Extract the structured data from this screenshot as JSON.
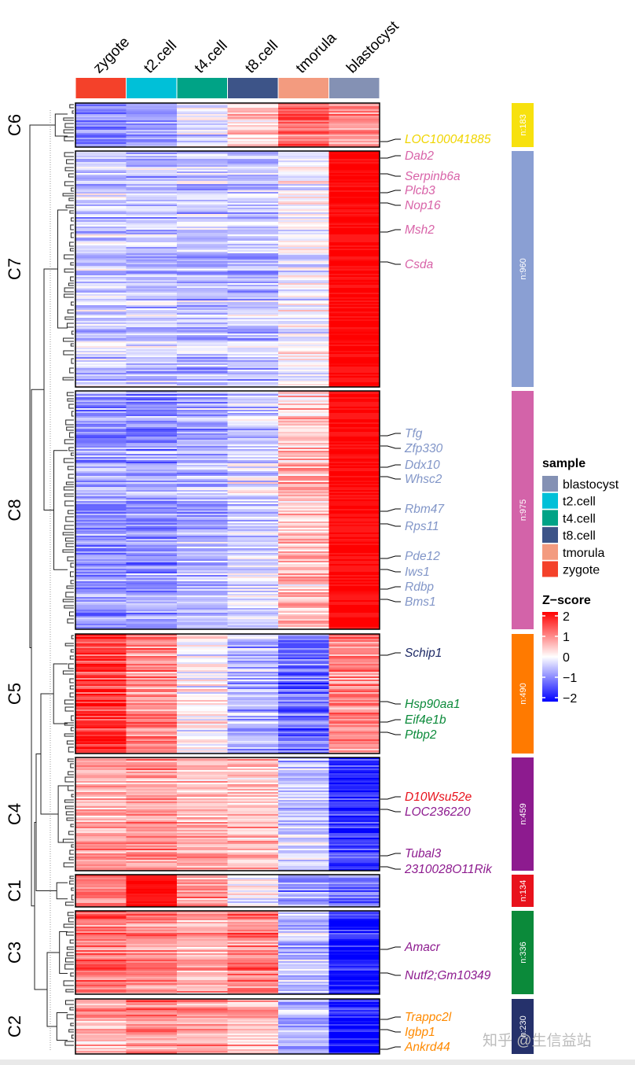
{
  "chart_data": {
    "type": "heatmap",
    "title": "",
    "columns": [
      "zygote",
      "t2.cell",
      "t4.cell",
      "t8.cell",
      "tmorula",
      "blastocyst"
    ],
    "column_colors": [
      "#f4412a",
      "#00c0d8",
      "#00a386",
      "#3d5488",
      "#f39b7f",
      "#8491b4"
    ],
    "clusters": [
      {
        "name": "C6",
        "count": "n:183",
        "color": "#f7e10e",
        "means": [
          -1.0,
          -0.8,
          -0.3,
          0.3,
          1.2,
          0.8
        ],
        "genes": [
          {
            "label": "LOC100041885",
            "color": "#f0d500"
          }
        ]
      },
      {
        "name": "C7",
        "count": "n:960",
        "color": "#8a9fd3",
        "means": [
          -0.4,
          -0.5,
          -0.5,
          -0.5,
          -0.1,
          2.0
        ],
        "genes": [
          {
            "label": "Dab2",
            "color": "#d863a8"
          },
          {
            "label": "Serpinb6a",
            "color": "#d863a8"
          },
          {
            "label": "Plcb3",
            "color": "#d863a8"
          },
          {
            "label": "Nop16",
            "color": "#d863a8"
          },
          {
            "label": "Msh2",
            "color": "#d863a8"
          },
          {
            "label": "Csda",
            "color": "#d863a8"
          }
        ]
      },
      {
        "name": "C8",
        "count": "n:975",
        "color": "#d363a9",
        "means": [
          -0.8,
          -0.8,
          -0.6,
          -0.3,
          0.5,
          1.9
        ],
        "genes": [
          {
            "label": "Tfg",
            "color": "#8296c8"
          },
          {
            "label": "Zfp330",
            "color": "#8296c8"
          },
          {
            "label": "Ddx10",
            "color": "#8296c8"
          },
          {
            "label": "Whsc2",
            "color": "#8296c8"
          },
          {
            "label": "Rbm47",
            "color": "#8296c8"
          },
          {
            "label": "Rps11",
            "color": "#8296c8"
          },
          {
            "label": "Pde12",
            "color": "#8296c8"
          },
          {
            "label": "Iws1",
            "color": "#8296c8"
          },
          {
            "label": "Rdbp",
            "color": "#8296c8"
          },
          {
            "label": "Bms1",
            "color": "#8296c8"
          }
        ]
      },
      {
        "name": "C5",
        "count": "n:490",
        "color": "#ff7a00",
        "means": [
          1.5,
          0.9,
          0.0,
          -0.6,
          -1.2,
          0.9
        ],
        "genes": [
          {
            "label": "Schip1",
            "color": "#1e2a66"
          },
          {
            "label": "Hsp90aa1",
            "color": "#0b8a3a"
          },
          {
            "label": "Eif4e1b",
            "color": "#0b8a3a"
          },
          {
            "label": "Ptbp2",
            "color": "#0b8a3a"
          }
        ]
      },
      {
        "name": "C4",
        "count": "n:459",
        "color": "#8d1b8f",
        "means": [
          0.7,
          0.8,
          0.6,
          0.5,
          -0.4,
          -1.6
        ],
        "genes": [
          {
            "label": "D10Wsu52e",
            "color": "#e8121c"
          },
          {
            "label": "LOC236220",
            "color": "#8d1b8f"
          },
          {
            "label": "Tubal3",
            "color": "#8d1b8f"
          },
          {
            "label": "2310028O11Rik",
            "color": "#8d1b8f"
          }
        ]
      },
      {
        "name": "C1",
        "count": "n:134",
        "color": "#e8121c",
        "means": [
          1.1,
          1.8,
          0.8,
          0.1,
          -0.8,
          -1.0
        ],
        "genes": []
      },
      {
        "name": "C3",
        "count": "n:336",
        "color": "#0b8a3a",
        "means": [
          1.1,
          0.9,
          0.6,
          1.0,
          -0.5,
          -1.8
        ],
        "genes": [
          {
            "label": "Amacr",
            "color": "#8d1b8f"
          },
          {
            "label": "Nutf2;Gm10349",
            "color": "#8d1b8f"
          }
        ]
      },
      {
        "name": "C2",
        "count": "n:230",
        "color": "#25316b",
        "means": [
          0.7,
          1.0,
          0.8,
          0.6,
          -0.5,
          -1.8
        ],
        "genes": [
          {
            "label": "Trappc2l",
            "color": "#ff8a00"
          },
          {
            "label": "Igbp1",
            "color": "#ff8a00"
          },
          {
            "label": "Ankrd44",
            "color": "#ff8a00"
          }
        ]
      }
    ],
    "legend_sample": {
      "title": "sample",
      "items": [
        {
          "label": "blastocyst",
          "color": "#8491b4"
        },
        {
          "label": "t2.cell",
          "color": "#00c0d8"
        },
        {
          "label": "t4.cell",
          "color": "#00a386"
        },
        {
          "label": "t8.cell",
          "color": "#3d5488"
        },
        {
          "label": "tmorula",
          "color": "#f39b7f"
        },
        {
          "label": "zygote",
          "color": "#f4412a"
        }
      ]
    },
    "legend_zscore": {
      "title": "Z−score",
      "ticks": [
        "2",
        "1",
        "0",
        "−1",
        "−2"
      ],
      "range": [
        -2,
        2
      ],
      "colors": {
        "low": "#0000ff",
        "mid": "#ffffff",
        "high": "#ff0000"
      }
    }
  },
  "watermark": "知乎 @生信益站"
}
